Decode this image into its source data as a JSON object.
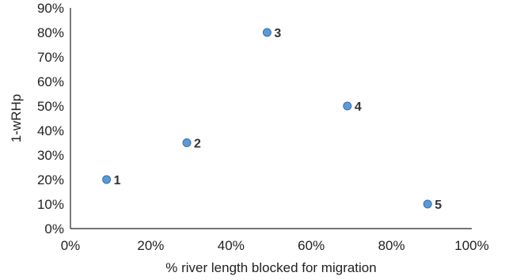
{
  "chart_data": {
    "type": "scatter",
    "xlabel": "% river length blocked for migration",
    "ylabel": "1-wRHp",
    "xlim": [
      0,
      1
    ],
    "ylim": [
      0,
      0.9
    ],
    "x_ticks": [
      "0%",
      "20%",
      "40%",
      "60%",
      "80%",
      "100%"
    ],
    "y_ticks": [
      "0%",
      "10%",
      "20%",
      "30%",
      "40%",
      "50%",
      "60%",
      "70%",
      "80%",
      "90%"
    ],
    "grid": false,
    "legend": "none",
    "marker_color": "#5b9bd5",
    "points": [
      {
        "label": "1",
        "x": 0.09,
        "y": 0.2
      },
      {
        "label": "2",
        "x": 0.29,
        "y": 0.35
      },
      {
        "label": "3",
        "x": 0.49,
        "y": 0.8
      },
      {
        "label": "4",
        "x": 0.69,
        "y": 0.5
      },
      {
        "label": "5",
        "x": 0.89,
        "y": 0.1
      }
    ]
  }
}
